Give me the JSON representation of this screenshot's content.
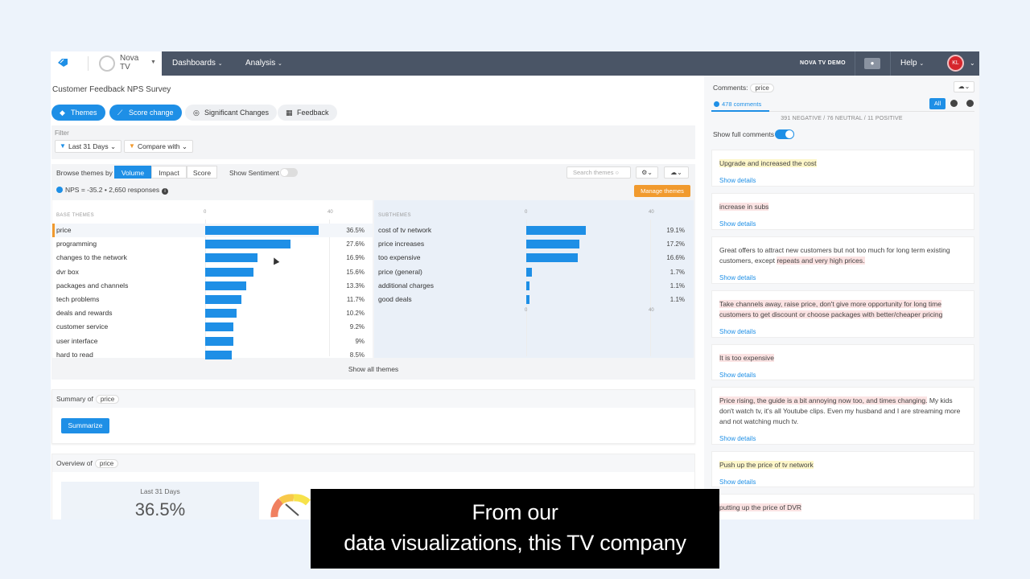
{
  "brand": {
    "name": "Nova TV",
    "line1": "Nova",
    "line2": "TV"
  },
  "nav": {
    "items": [
      {
        "label": "Dashboards"
      },
      {
        "label": "Analysis"
      }
    ],
    "workspace": "NOVA TV DEMO",
    "help": "Help",
    "avatar_initials": "KL"
  },
  "survey": {
    "title": "Customer Feedback NPS Survey"
  },
  "tabs": [
    {
      "label": "Themes",
      "icon": "tag-icon",
      "active": true
    },
    {
      "label": "Score change",
      "icon": "line-chart-icon",
      "active": true
    },
    {
      "label": "Significant Changes",
      "icon": "compass-icon",
      "active": false
    },
    {
      "label": "Feedback",
      "icon": "table-icon",
      "active": false
    }
  ],
  "filter": {
    "label": "Filter",
    "period": "Last 31 Days",
    "compare": "Compare with"
  },
  "browse": {
    "label": "Browse themes by",
    "modes": [
      "Volume",
      "Impact",
      "Score"
    ],
    "active_mode": "Volume",
    "show_sentiment": "Show Sentiment",
    "search_placeholder": "Search themes",
    "nps_text": "NPS = -35.2 • 2,650 responses",
    "manage_label": "Manage themes",
    "show_all": "Show all themes"
  },
  "chart_data": [
    {
      "type": "bar",
      "title": "BASE THEMES",
      "xlim": [
        0,
        40
      ],
      "categories": [
        "price",
        "programming",
        "changes to the network",
        "dvr box",
        "packages and channels",
        "tech problems",
        "deals and rewards",
        "customer service",
        "user interface",
        "hard to read"
      ],
      "values": [
        36.5,
        27.6,
        16.9,
        15.6,
        13.3,
        11.7,
        10.2,
        9.2,
        9,
        8.5
      ],
      "labels": [
        "36.5%",
        "27.6%",
        "16.9%",
        "15.6%",
        "13.3%",
        "11.7%",
        "10.2%",
        "9.2%",
        "9%",
        "8.5%"
      ],
      "selected": "price"
    },
    {
      "type": "bar",
      "title": "SUBTHEMES",
      "xlim": [
        0,
        40
      ],
      "categories": [
        "cost of tv network",
        "price increases",
        "too expensive",
        "price (general)",
        "additional charges",
        "good deals"
      ],
      "values": [
        19.1,
        17.2,
        16.6,
        1.7,
        1.1,
        1.1
      ],
      "labels": [
        "19.1%",
        "17.2%",
        "16.6%",
        "1.7%",
        "1.1%",
        "1.1%"
      ]
    }
  ],
  "axis": {
    "min_label": "0",
    "max_label": "40"
  },
  "summary": {
    "label": "Summary of",
    "chip": "price",
    "button": "Summarize"
  },
  "overview": {
    "label": "Overview of",
    "chip": "price",
    "period": "Last 31 Days",
    "value": "36.5%"
  },
  "comments": {
    "label": "Comments:",
    "chip": "price",
    "count": "478 comments",
    "filter_all": "All",
    "sentiment_summary": "391 NEGATIVE / 76 NEUTRAL / 11 POSITIVE",
    "show_full": "Show full comments",
    "show_details": "Show details",
    "items": [
      {
        "segments": [
          {
            "text": "Upgrade and increased the cost",
            "hl": "yellow"
          }
        ]
      },
      {
        "segments": [
          {
            "text": "increase in subs",
            "hl": "red"
          }
        ]
      },
      {
        "segments": [
          {
            "text": "Great offers to attract new customers but not too much for long term existing customers, except ",
            "hl": ""
          },
          {
            "text": "repeats and very high prices.",
            "hl": "red"
          }
        ]
      },
      {
        "segments": [
          {
            "text": "Take channels away, raise price, don't give more opportunity for long time customers to get discount or choose packages with better/cheaper pricing",
            "hl": "red"
          }
        ]
      },
      {
        "segments": [
          {
            "text": "It is too expensive",
            "hl": "red"
          }
        ]
      },
      {
        "segments": [
          {
            "text": "Price rising, the guide is a bit annoying now too, and times changing.",
            "hl": "red"
          },
          {
            "text": " My kids don't watch tv, it's all Youtube clips. Even my husband and I are streaming more and not watching much tv.",
            "hl": ""
          }
        ]
      },
      {
        "segments": [
          {
            "text": "Push up the price of tv network",
            "hl": "yellow"
          }
        ]
      },
      {
        "segments": [
          {
            "text": "putting up the price of DVR",
            "hl": "red"
          }
        ]
      }
    ]
  },
  "caption": {
    "line1": "From our",
    "line2": "data visualizations, this TV company"
  },
  "colors": {
    "accent": "#1e8fe6",
    "nav": "#4a5566",
    "manage": "#f19a2e",
    "avatar": "#d6262c"
  }
}
